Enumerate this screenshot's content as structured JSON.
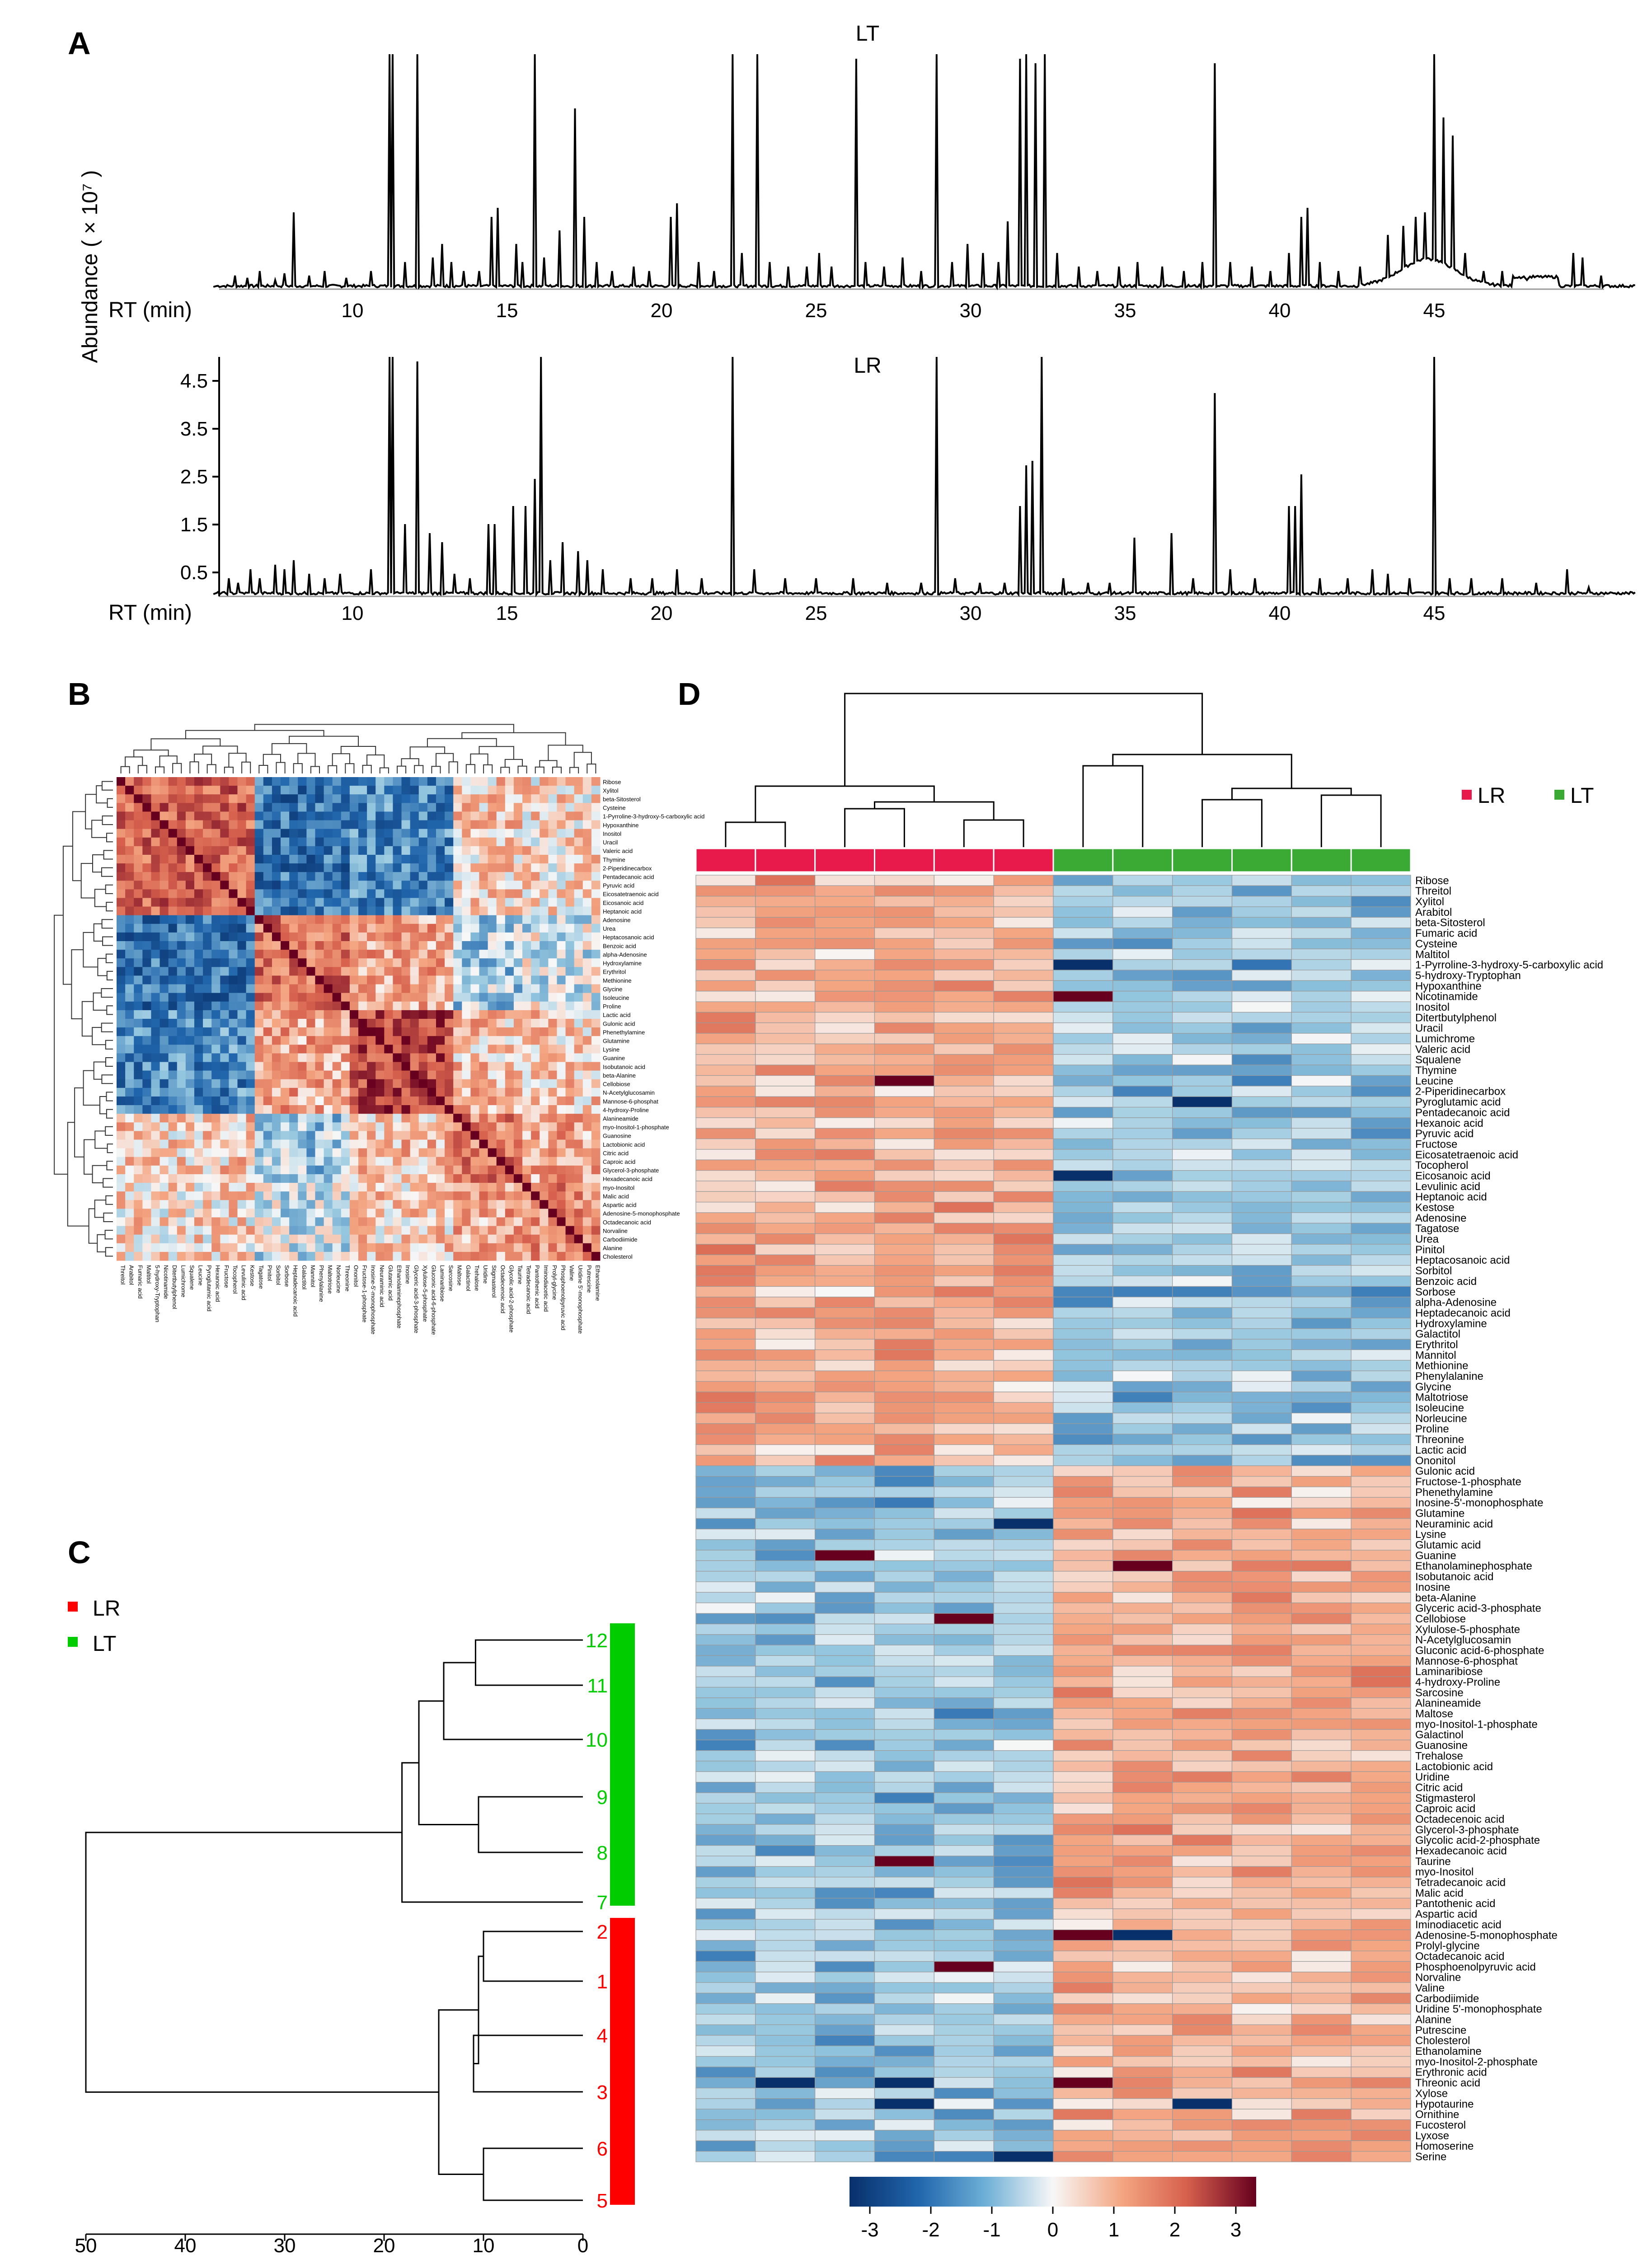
{
  "panels": {
    "a": "A",
    "b": "B",
    "c": "C",
    "d": "D"
  },
  "colors": {
    "lr": "#e8194b",
    "lt": "#3aaa35",
    "lr_c": "#ff0000",
    "lt_c": "#00cc00"
  },
  "chromatogram": {
    "y_axis_label": "Abundance ( × 10⁷ )",
    "rt_label": "RT (min)",
    "x_ticks": [
      10,
      15,
      20,
      25,
      30,
      35,
      40,
      45
    ],
    "y_ticks": [
      "4.5",
      "3.5",
      "2.5",
      "1.5",
      "0.5"
    ],
    "top_title": "LT",
    "bottom_title": "LR"
  },
  "legend": {
    "lr": "LR",
    "lt": "LT"
  },
  "dendrogram": {
    "leaves": [
      "12",
      "11",
      "10",
      "9",
      "8",
      "7",
      "2",
      "1",
      "4",
      "3",
      "6",
      "5"
    ],
    "x_ticks": [
      "50",
      "40",
      "30",
      "20",
      "10",
      "0"
    ]
  },
  "heatmap": {
    "color_ticks": [
      "-3",
      "-2",
      "-1",
      "0",
      "1",
      "2",
      "3"
    ],
    "metabolites": [
      "Ribose",
      "Threitol",
      "Xylitol",
      "Arabitol",
      "beta-Sitosterol",
      "Fumaric acid",
      "Cysteine",
      "Maltitol",
      "1-Pyrroline-3-hydroxy-5-carboxylic acid",
      "5-hydroxy-Tryptophan",
      "Hypoxanthine",
      "Nicotinamide",
      "Inositol",
      "Ditertbutylphenol",
      "Uracil",
      "Lumichrome",
      "Valeric acid",
      "Squalene",
      "Thymine",
      "Leucine",
      "2-Piperidinecarbox",
      "Pyroglutamic acid",
      "Pentadecanoic acid",
      "Hexanoic acid",
      "Pyruvic acid",
      "Fructose",
      "Eicosatetraenoic acid",
      "Tocopherol",
      "Eicosanoic acid",
      "Levulinic acid",
      "Heptanoic acid",
      "Kestose",
      "Adenosine",
      "Tagatose",
      "Urea",
      "Pinitol",
      "Heptacosanoic acid",
      "Sorbitol",
      "Benzoic acid",
      "Sorbose",
      "alpha-Adenosine",
      "Heptadecanoic acid",
      "Hydroxylamine",
      "Galactitol",
      "Erythritol",
      "Mannitol",
      "Methionine",
      "Phenylalanine",
      "Glycine",
      "Maltotriose",
      "Isoleucine",
      "Norleucine",
      "Proline",
      "Threonine",
      "Lactic acid",
      "Ononitol",
      "Gulonic acid",
      "Fructose-1-phosphate",
      "Phenethylamine",
      "Inosine-5'-monophosphate",
      "Glutamine",
      "Neuraminic acid",
      "Lysine",
      "Glutamic acid",
      "Guanine",
      "Ethanolaminephosphate",
      "Isobutanoic acid",
      "Inosine",
      "beta-Alanine",
      "Glyceric acid-3-phosphate",
      "Cellobiose",
      "Xylulose-5-phosphate",
      "N-Acetylglucosamin",
      "Gluconic acid-6-phosphate",
      "Mannose-6-phosphat",
      "Laminaribiose",
      "4-hydroxy-Proline",
      "Sarcosine",
      "Alanineamide",
      "Maltose",
      "myo-Inositol-1-phosphate",
      "Galactinol",
      "Guanosine",
      "Trehalose",
      "Lactobionic acid",
      "Uridine",
      "Citric acid",
      "Stigmasterol",
      "Caproic acid",
      "Octadecenoic acid",
      "Glycerol-3-phosphate",
      "Glycolic acid-2-phosphate",
      "Hexadecanoic acid",
      "Taurine",
      "myo-Inositol",
      "Tetradecanoic acid",
      "Malic acid",
      "Pantothenic acid",
      "Aspartic acid",
      "Iminodiacetic acid",
      "Adenosine-5-monophosphate",
      "Prolyl-glycine",
      "Octadecanoic acid",
      "Phosphoenolpyruvic acid",
      "Norvaline",
      "Valine",
      "Carbodiimide",
      "Uridine 5'-monophosphate",
      "Alanine",
      "Putrescine",
      "Cholesterol",
      "Ethanolamine",
      "myo-Inositol-2-phosphate",
      "Erythronic acid",
      "Threonic acid",
      "Xylose",
      "Hypotaurine",
      "Ornithine",
      "Fucosterol",
      "Lyxose",
      "Homoserine",
      "Serine"
    ]
  }
}
